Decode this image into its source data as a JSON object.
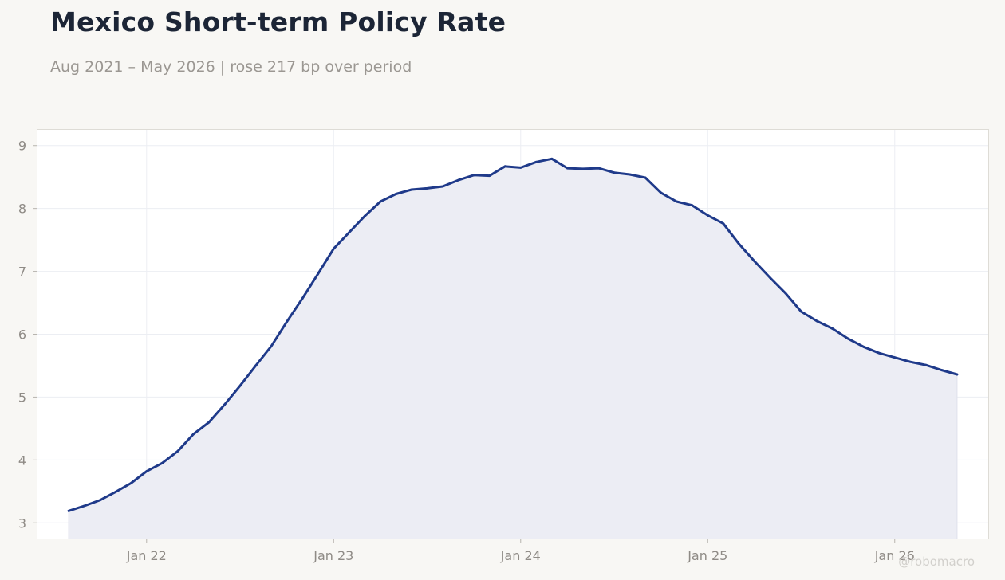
{
  "header": {
    "title": "Mexico Short-term Policy Rate",
    "subtitle": "Aug 2021 – May 2026 | rose 217 bp over period"
  },
  "watermark": "@robomacro",
  "colors": {
    "line": "#1f3a8a",
    "fill": "#ecedf4",
    "grid": "#eceef3",
    "background": "#f8f7f4",
    "plot_background": "#ffffff"
  },
  "chart_data": {
    "type": "area",
    "title": "Mexico Short-term Policy Rate",
    "subtitle": "Aug 2021 – May 2026 | rose 217 bp over period",
    "xlabel": "",
    "ylabel": "",
    "ylim": [
      2.75,
      9.25
    ],
    "xlim": [
      "2021-06",
      "2026-07"
    ],
    "grid": true,
    "legend": "none",
    "y_ticks": [
      3,
      4,
      5,
      6,
      7,
      8,
      9
    ],
    "x_ticks": [
      {
        "date": "2022-01",
        "label": "Jan 22"
      },
      {
        "date": "2023-01",
        "label": "Jan 23"
      },
      {
        "date": "2024-01",
        "label": "Jan 24"
      },
      {
        "date": "2025-01",
        "label": "Jan 25"
      },
      {
        "date": "2026-01",
        "label": "Jan 26"
      }
    ],
    "series": [
      {
        "points": [
          [
            "2021-08",
            3.19
          ],
          [
            "2021-09",
            3.27
          ],
          [
            "2021-10",
            3.36
          ],
          [
            "2021-11",
            3.49
          ],
          [
            "2021-12",
            3.63
          ],
          [
            "2022-01",
            3.82
          ],
          [
            "2022-02",
            3.95
          ],
          [
            "2022-03",
            4.14
          ],
          [
            "2022-04",
            4.41
          ],
          [
            "2022-05",
            4.6
          ],
          [
            "2022-06",
            4.88
          ],
          [
            "2022-07",
            5.18
          ],
          [
            "2022-08",
            5.5
          ],
          [
            "2022-09",
            5.81
          ],
          [
            "2022-10",
            6.2
          ],
          [
            "2022-11",
            6.57
          ],
          [
            "2022-12",
            6.96
          ],
          [
            "2023-01",
            7.36
          ],
          [
            "2023-02",
            7.62
          ],
          [
            "2023-03",
            7.88
          ],
          [
            "2023-04",
            8.11
          ],
          [
            "2023-05",
            8.23
          ],
          [
            "2023-06",
            8.3
          ],
          [
            "2023-07",
            8.32
          ],
          [
            "2023-08",
            8.35
          ],
          [
            "2023-09",
            8.45
          ],
          [
            "2023-10",
            8.53
          ],
          [
            "2023-11",
            8.52
          ],
          [
            "2023-12",
            8.67
          ],
          [
            "2024-01",
            8.65
          ],
          [
            "2024-02",
            8.74
          ],
          [
            "2024-03",
            8.79
          ],
          [
            "2024-04",
            8.64
          ],
          [
            "2024-05",
            8.63
          ],
          [
            "2024-06",
            8.64
          ],
          [
            "2024-07",
            8.57
          ],
          [
            "2024-08",
            8.54
          ],
          [
            "2024-09",
            8.49
          ],
          [
            "2024-10",
            8.25
          ],
          [
            "2024-11",
            8.11
          ],
          [
            "2024-12",
            8.05
          ],
          [
            "2025-01",
            7.89
          ],
          [
            "2025-02",
            7.76
          ],
          [
            "2025-03",
            7.44
          ],
          [
            "2025-04",
            7.16
          ],
          [
            "2025-05",
            6.9
          ],
          [
            "2025-06",
            6.65
          ],
          [
            "2025-07",
            6.36
          ],
          [
            "2025-08",
            6.21
          ],
          [
            "2025-09",
            6.09
          ],
          [
            "2025-10",
            5.93
          ],
          [
            "2025-11",
            5.8
          ],
          [
            "2025-12",
            5.7
          ],
          [
            "2026-01",
            5.63
          ],
          [
            "2026-02",
            5.56
          ],
          [
            "2026-03",
            5.51
          ],
          [
            "2026-04",
            5.43
          ],
          [
            "2026-05",
            5.36
          ]
        ]
      }
    ]
  }
}
